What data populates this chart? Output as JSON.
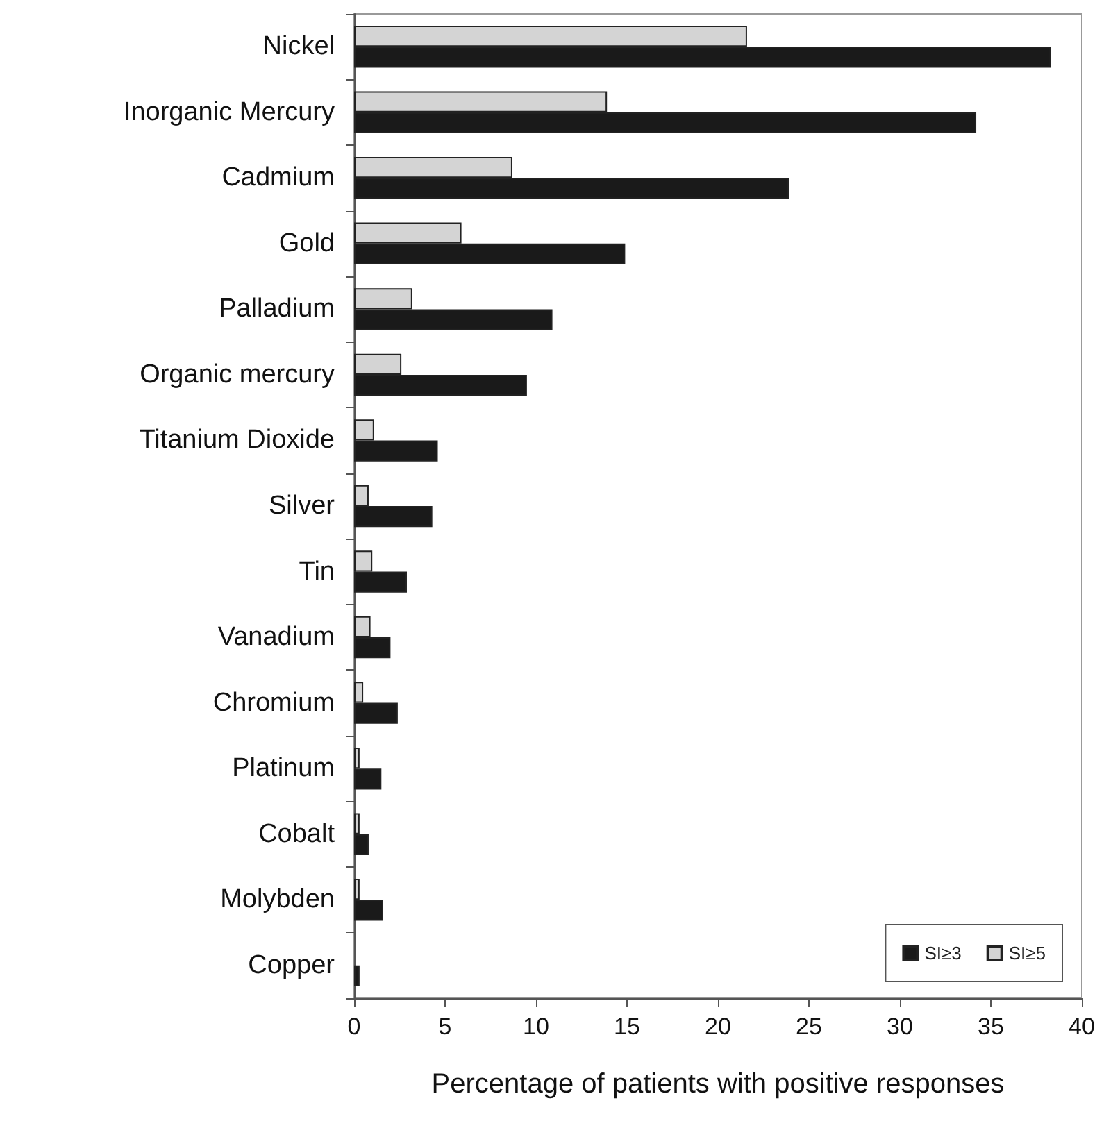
{
  "chart_data": {
    "type": "bar",
    "orientation": "horizontal",
    "xlabel": "Percentage of patients with positive responses",
    "categories": [
      "Nickel",
      "Inorganic Mercury",
      "Cadmium",
      "Gold",
      "Palladium",
      "Organic mercury",
      "Titanium Dioxide",
      "Silver",
      "Tin",
      "Vanadium",
      "Chromium",
      "Platinum",
      "Cobalt",
      "Molybden",
      "Copper"
    ],
    "series": [
      {
        "name": "SI≥3",
        "color": "#1a1a1a",
        "values": [
          38.3,
          34.2,
          23.9,
          14.9,
          10.9,
          9.5,
          4.6,
          4.3,
          2.9,
          2.0,
          2.4,
          1.5,
          0.8,
          1.6,
          0.3
        ]
      },
      {
        "name": "SI≥5",
        "color": "#d4d4d4",
        "values": [
          21.6,
          13.9,
          8.7,
          5.9,
          3.2,
          2.6,
          1.1,
          0.8,
          1.0,
          0.9,
          0.5,
          0.3,
          0.3,
          0.3,
          null
        ]
      }
    ],
    "xlim": [
      0,
      40
    ],
    "xticks": [
      0,
      5,
      10,
      15,
      20,
      25,
      30,
      35,
      40
    ],
    "grid": false,
    "legend": "bottom right"
  }
}
